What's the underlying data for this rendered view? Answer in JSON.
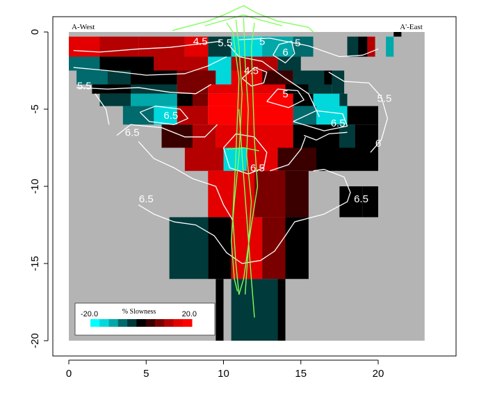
{
  "chart_data": {
    "type": "heatmap",
    "title": "",
    "xlabel": "",
    "ylabel": "",
    "xlim": [
      -1,
      25
    ],
    "ylim": [
      -21,
      1
    ],
    "x_ticks": [
      0,
      5,
      10,
      15,
      20
    ],
    "y_ticks": [
      0,
      -5,
      -10,
      -15,
      -20
    ],
    "corner_labels": {
      "left": "A-West",
      "right": "A'-East"
    },
    "legend": {
      "title": "% Slowness",
      "min_label": "-20.0",
      "max_label": "20.0",
      "min": -20,
      "max": 20
    },
    "colors": {
      "background": "#b4b4b4",
      "contour": "#ffffff",
      "outline": "#7fff5a",
      "ramp": [
        "#00ffff",
        "#00d8dc",
        "#00a8aa",
        "#006a6c",
        "#003a3a",
        "#000000",
        "#3a0000",
        "#7a0000",
        "#b40000",
        "#e40000",
        "#ff0000"
      ]
    },
    "cells": [
      {
        "x0": 0.0,
        "x1": 2.0,
        "y0": -0.3,
        "y1": -1.6,
        "v": 14
      },
      {
        "x0": 2.0,
        "x1": 4.5,
        "y0": -0.3,
        "y1": -1.6,
        "v": 10
      },
      {
        "x0": 4.5,
        "x1": 7.5,
        "y0": -0.3,
        "y1": -1.6,
        "v": 12
      },
      {
        "x0": 7.5,
        "x1": 9.0,
        "y0": -0.3,
        "y1": -1.6,
        "v": 16
      },
      {
        "x0": 9.0,
        "x1": 10.5,
        "y0": -0.3,
        "y1": -1.6,
        "v": -6
      },
      {
        "x0": 10.5,
        "x1": 12.5,
        "y0": -0.3,
        "y1": -1.6,
        "v": -18
      },
      {
        "x0": 12.5,
        "x1": 14.5,
        "y0": -0.3,
        "y1": -1.6,
        "v": -14
      },
      {
        "x0": 14.5,
        "x1": 15.8,
        "y0": -0.3,
        "y1": -1.6,
        "v": -8
      },
      {
        "x0": 18.0,
        "x1": 18.7,
        "y0": -0.3,
        "y1": -1.6,
        "v": -6
      },
      {
        "x0": 18.7,
        "x1": 19.3,
        "y0": -0.3,
        "y1": -1.6,
        "v": 0
      },
      {
        "x0": 19.3,
        "x1": 19.8,
        "y0": -0.3,
        "y1": -1.6,
        "v": 10
      },
      {
        "x0": 20.5,
        "x1": 21.0,
        "y0": -0.3,
        "y1": -1.6,
        "v": -14
      },
      {
        "x0": 21.0,
        "x1": 21.5,
        "y0": 0.0,
        "y1": -0.3,
        "v": 0
      },
      {
        "x0": 0.0,
        "x1": 2.0,
        "y0": -1.6,
        "y1": -2.5,
        "v": -10
      },
      {
        "x0": 2.0,
        "x1": 5.5,
        "y0": -1.6,
        "y1": -2.5,
        "v": 0
      },
      {
        "x0": 5.5,
        "x1": 9.0,
        "y0": -1.6,
        "y1": -2.5,
        "v": 10
      },
      {
        "x0": 9.0,
        "x1": 10.5,
        "y0": -1.6,
        "y1": -2.5,
        "v": -18
      },
      {
        "x0": 10.5,
        "x1": 13.5,
        "y0": -1.6,
        "y1": -2.5,
        "v": 10
      },
      {
        "x0": 13.5,
        "x1": 15.0,
        "y0": -1.6,
        "y1": -2.5,
        "v": -4
      },
      {
        "x0": 0.5,
        "x1": 2.5,
        "y0": -2.5,
        "y1": -3.4,
        "v": -10
      },
      {
        "x0": 2.5,
        "x1": 4.0,
        "y0": -2.5,
        "y1": -3.4,
        "v": -6
      },
      {
        "x0": 4.0,
        "x1": 7.0,
        "y0": -2.5,
        "y1": -3.4,
        "v": 0
      },
      {
        "x0": 7.0,
        "x1": 9.5,
        "y0": -2.5,
        "y1": -3.4,
        "v": 6
      },
      {
        "x0": 9.5,
        "x1": 10.5,
        "y0": -2.5,
        "y1": -3.4,
        "v": -16
      },
      {
        "x0": 10.5,
        "x1": 12.5,
        "y0": -2.5,
        "y1": -3.4,
        "v": 16
      },
      {
        "x0": 12.5,
        "x1": 14.5,
        "y0": -2.5,
        "y1": -3.4,
        "v": 4
      },
      {
        "x0": 14.5,
        "x1": 16.5,
        "y0": -2.5,
        "y1": -3.4,
        "v": -4
      },
      {
        "x0": 16.5,
        "x1": 17.8,
        "y0": -2.5,
        "y1": -3.4,
        "v": 0
      },
      {
        "x0": 17.0,
        "x1": 17.8,
        "y0": -2.5,
        "y1": -4.0,
        "v": -6
      },
      {
        "x0": 1.5,
        "x1": 4.0,
        "y0": -3.4,
        "y1": -4.0,
        "v": 0
      },
      {
        "x0": 4.0,
        "x1": 7.0,
        "y0": -3.4,
        "y1": -4.0,
        "v": -4
      },
      {
        "x0": 7.0,
        "x1": 9.0,
        "y0": -3.4,
        "y1": -4.0,
        "v": 6
      },
      {
        "x0": 9.0,
        "x1": 14.0,
        "y0": -3.4,
        "y1": -4.0,
        "v": 14
      },
      {
        "x0": 14.0,
        "x1": 15.5,
        "y0": -3.4,
        "y1": -4.0,
        "v": 0
      },
      {
        "x0": 15.5,
        "x1": 17.0,
        "y0": -3.4,
        "y1": -4.0,
        "v": -6
      },
      {
        "x0": 2.0,
        "x1": 4.0,
        "y0": -4.0,
        "y1": -4.8,
        "v": -6
      },
      {
        "x0": 4.0,
        "x1": 7.0,
        "y0": -4.0,
        "y1": -4.8,
        "v": -12
      },
      {
        "x0": 7.0,
        "x1": 8.0,
        "y0": -4.0,
        "y1": -4.8,
        "v": 0
      },
      {
        "x0": 8.0,
        "x1": 9.0,
        "y0": -4.0,
        "y1": -4.8,
        "v": 8
      },
      {
        "x0": 9.0,
        "x1": 14.5,
        "y0": -4.0,
        "y1": -4.8,
        "v": 18
      },
      {
        "x0": 14.5,
        "x1": 15.8,
        "y0": -4.0,
        "y1": -4.8,
        "v": 0
      },
      {
        "x0": 15.8,
        "x1": 17.5,
        "y0": -4.0,
        "y1": -4.8,
        "v": -18
      },
      {
        "x0": 17.5,
        "x1": 18.0,
        "y0": -4.0,
        "y1": -4.8,
        "v": -6
      },
      {
        "x0": 3.5,
        "x1": 5.5,
        "y0": -4.8,
        "y1": -6.0,
        "v": -8
      },
      {
        "x0": 5.5,
        "x1": 7.0,
        "y0": -4.8,
        "y1": -6.0,
        "v": -18
      },
      {
        "x0": 7.0,
        "x1": 9.0,
        "y0": -4.8,
        "y1": -6.0,
        "v": 10
      },
      {
        "x0": 9.0,
        "x1": 14.5,
        "y0": -4.8,
        "y1": -6.0,
        "v": 18
      },
      {
        "x0": 14.5,
        "x1": 16.0,
        "y0": -4.8,
        "y1": -6.0,
        "v": -8
      },
      {
        "x0": 16.0,
        "x1": 18.0,
        "y0": -4.8,
        "y1": -6.0,
        "v": -18
      },
      {
        "x0": 18.0,
        "x1": 20.0,
        "y0": -4.8,
        "y1": -6.0,
        "v": 0
      },
      {
        "x0": 6.0,
        "x1": 8.0,
        "y0": -6.0,
        "y1": -7.5,
        "v": 4
      },
      {
        "x0": 8.0,
        "x1": 9.5,
        "y0": -6.0,
        "y1": -7.5,
        "v": 12
      },
      {
        "x0": 9.5,
        "x1": 14.5,
        "y0": -6.0,
        "y1": -7.5,
        "v": 14
      },
      {
        "x0": 14.5,
        "x1": 16.0,
        "y0": -6.0,
        "y1": -7.5,
        "v": 0
      },
      {
        "x0": 16.0,
        "x1": 17.5,
        "y0": -6.0,
        "y1": -7.5,
        "v": -2
      },
      {
        "x0": 17.5,
        "x1": 18.5,
        "y0": -6.0,
        "y1": -7.5,
        "v": -4
      },
      {
        "x0": 18.5,
        "x1": 20.0,
        "y0": -6.0,
        "y1": -7.5,
        "v": -2
      },
      {
        "x0": 7.5,
        "x1": 10.0,
        "y0": -7.5,
        "y1": -9.0,
        "v": 12
      },
      {
        "x0": 10.0,
        "x1": 11.5,
        "y0": -7.5,
        "y1": -9.0,
        "v": -16
      },
      {
        "x0": 11.5,
        "x1": 13.5,
        "y0": -7.5,
        "y1": -9.0,
        "v": 14
      },
      {
        "x0": 13.5,
        "x1": 16.0,
        "y0": -7.5,
        "y1": -9.0,
        "v": 4
      },
      {
        "x0": 16.0,
        "x1": 20.0,
        "y0": -7.5,
        "y1": -9.0,
        "v": -2
      },
      {
        "x0": 9.0,
        "x1": 12.0,
        "y0": -9.0,
        "y1": -12.0,
        "v": 14
      },
      {
        "x0": 12.0,
        "x1": 14.0,
        "y0": -9.0,
        "y1": -12.0,
        "v": 8
      },
      {
        "x0": 14.0,
        "x1": 15.5,
        "y0": -9.0,
        "y1": -12.0,
        "v": 2
      },
      {
        "x0": 17.5,
        "x1": 19.0,
        "y0": -10.0,
        "y1": -12.0,
        "v": -2
      },
      {
        "x0": 19.0,
        "x1": 20.0,
        "y0": -10.0,
        "y1": -12.0,
        "v": 0
      },
      {
        "x0": 6.5,
        "x1": 9.0,
        "y0": -12.0,
        "y1": -16.0,
        "v": -4
      },
      {
        "x0": 9.0,
        "x1": 10.5,
        "y0": -12.0,
        "y1": -16.0,
        "v": 0
      },
      {
        "x0": 10.5,
        "x1": 12.5,
        "y0": -12.0,
        "y1": -16.0,
        "v": 14
      },
      {
        "x0": 12.5,
        "x1": 14.0,
        "y0": -12.0,
        "y1": -16.0,
        "v": 6
      },
      {
        "x0": 14.0,
        "x1": 15.5,
        "y0": -12.0,
        "y1": -16.0,
        "v": -2
      },
      {
        "x0": 9.5,
        "x1": 10.0,
        "y0": -16.0,
        "y1": -20.0,
        "v": 0
      },
      {
        "x0": 10.5,
        "x1": 12.0,
        "y0": -16.0,
        "y1": -20.0,
        "v": -6
      },
      {
        "x0": 12.0,
        "x1": 13.5,
        "y0": -16.0,
        "y1": -20.0,
        "v": -4
      },
      {
        "x0": 13.5,
        "x1": 14.0,
        "y0": -16.0,
        "y1": -20.0,
        "v": 0
      }
    ],
    "contour_labels": [
      {
        "text": "4.5",
        "x": 8.5,
        "y": -0.6
      },
      {
        "text": "5.5",
        "x": 10.1,
        "y": -0.7
      },
      {
        "text": "5",
        "x": 12.5,
        "y": -0.6
      },
      {
        "text": "5",
        "x": 14.8,
        "y": -0.7
      },
      {
        "text": "6",
        "x": 14.0,
        "y": -1.3
      },
      {
        "text": "4.5",
        "x": 11.8,
        "y": -2.5
      },
      {
        "text": "5.5",
        "x": 1.0,
        "y": -3.5
      },
      {
        "text": "5",
        "x": 14.0,
        "y": -4.0
      },
      {
        "text": "5.5",
        "x": 20.4,
        "y": -4.3
      },
      {
        "text": "6.5",
        "x": 6.6,
        "y": -5.4
      },
      {
        "text": "6.5",
        "x": 4.1,
        "y": -6.5
      },
      {
        "text": "6.5",
        "x": 17.4,
        "y": -5.9
      },
      {
        "text": "6",
        "x": 20.0,
        "y": -7.2
      },
      {
        "text": "6.5",
        "x": 12.2,
        "y": -8.8
      },
      {
        "text": "6.5",
        "x": 5.0,
        "y": -10.8
      },
      {
        "text": "6.5",
        "x": 18.9,
        "y": -10.8
      }
    ],
    "contours": [
      [
        [
          0.3,
          -1.2
        ],
        [
          2.0,
          -1.3
        ],
        [
          4.5,
          -1.1
        ],
        [
          6.5,
          -1.0
        ],
        [
          8.2,
          -0.8
        ],
        [
          9.8,
          -0.6
        ]
      ],
      [
        [
          11.0,
          -0.5
        ],
        [
          13.0,
          -0.4
        ],
        [
          15.5,
          -0.9
        ],
        [
          17.5,
          -1.6
        ],
        [
          19.0,
          -1.5
        ],
        [
          20.0,
          -1.1
        ]
      ],
      [
        [
          0.3,
          -2.3
        ],
        [
          2.5,
          -2.5
        ],
        [
          5.0,
          -2.8
        ],
        [
          7.5,
          -2.7
        ],
        [
          9.0,
          -2.2
        ],
        [
          10.2,
          -1.6
        ]
      ],
      [
        [
          0.5,
          -3.6
        ],
        [
          2.5,
          -3.7
        ],
        [
          4.5,
          -3.6
        ],
        [
          6.5,
          -3.9
        ],
        [
          8.2,
          -4.0
        ],
        [
          9.2,
          -3.4
        ]
      ],
      [
        [
          1.7,
          -4.0
        ],
        [
          2.4,
          -5.0
        ],
        [
          2.6,
          -6.0
        ]
      ],
      [
        [
          4.6,
          -5.2
        ],
        [
          5.6,
          -4.8
        ],
        [
          7.2,
          -5.0
        ],
        [
          7.7,
          -5.6
        ],
        [
          6.8,
          -6.0
        ],
        [
          5.2,
          -5.8
        ],
        [
          4.6,
          -5.2
        ]
      ],
      [
        [
          3.1,
          -6.7
        ],
        [
          4.0,
          -6.0
        ],
        [
          6.0,
          -6.2
        ],
        [
          7.5,
          -6.8
        ],
        [
          8.8,
          -6.8
        ],
        [
          9.6,
          -6.0
        ]
      ],
      [
        [
          4.5,
          -7.1
        ],
        [
          5.5,
          -8.2
        ],
        [
          6.8,
          -8.8
        ],
        [
          8.0,
          -9.5
        ],
        [
          9.5,
          -10.0
        ]
      ],
      [
        [
          11.2,
          -3.0
        ],
        [
          12.0,
          -2.3
        ],
        [
          12.8,
          -2.6
        ],
        [
          12.6,
          -3.3
        ],
        [
          11.8,
          -3.5
        ],
        [
          11.2,
          -3.0
        ]
      ],
      [
        [
          13.2,
          -1.5
        ],
        [
          13.6,
          -0.8
        ],
        [
          14.4,
          -0.6
        ],
        [
          14.6,
          -1.4
        ],
        [
          14.0,
          -2.0
        ],
        [
          13.2,
          -1.5
        ]
      ],
      [
        [
          12.8,
          -4.5
        ],
        [
          13.5,
          -3.7
        ],
        [
          14.8,
          -3.8
        ],
        [
          15.2,
          -4.4
        ],
        [
          14.2,
          -4.9
        ],
        [
          12.8,
          -4.5
        ]
      ],
      [
        [
          10.3,
          -0.8
        ],
        [
          11.0,
          -1.6
        ],
        [
          12.5,
          -1.9
        ],
        [
          14.0,
          -3.0
        ],
        [
          15.5,
          -4.0
        ],
        [
          16.2,
          -5.5
        ]
      ],
      [
        [
          14.5,
          -5.8
        ],
        [
          16.0,
          -5.1
        ],
        [
          17.7,
          -5.3
        ],
        [
          18.0,
          -6.1
        ],
        [
          16.5,
          -6.4
        ],
        [
          14.5,
          -5.8
        ]
      ],
      [
        [
          16.8,
          -2.6
        ],
        [
          17.8,
          -3.2
        ],
        [
          19.4,
          -3.3
        ],
        [
          20.2,
          -4.2
        ],
        [
          20.6,
          -5.6
        ],
        [
          20.2,
          -7.0
        ],
        [
          19.5,
          -7.8
        ]
      ],
      [
        [
          15.2,
          -6.7
        ],
        [
          16.0,
          -7.0
        ],
        [
          16.8,
          -6.6
        ],
        [
          18.0,
          -6.5
        ]
      ],
      [
        [
          13.0,
          -9.0
        ],
        [
          14.2,
          -8.6
        ],
        [
          15.0,
          -7.6
        ],
        [
          15.3,
          -6.8
        ]
      ],
      [
        [
          10.0,
          -7.5
        ],
        [
          10.8,
          -6.6
        ],
        [
          12.0,
          -6.8
        ],
        [
          12.8,
          -7.8
        ],
        [
          12.6,
          -8.8
        ],
        [
          11.6,
          -9.2
        ],
        [
          10.4,
          -8.8
        ],
        [
          10.0,
          -7.5
        ]
      ],
      [
        [
          4.5,
          -11.2
        ],
        [
          5.5,
          -11.8
        ],
        [
          6.8,
          -12.3
        ],
        [
          8.2,
          -12.5
        ],
        [
          9.4,
          -13.2
        ],
        [
          10.2,
          -14.3
        ],
        [
          11.2,
          -15.0
        ],
        [
          12.4,
          -14.8
        ],
        [
          13.3,
          -14.2
        ],
        [
          14.0,
          -13.2
        ],
        [
          14.6,
          -12.3
        ],
        [
          16.5,
          -11.8
        ],
        [
          18.0,
          -11.0
        ],
        [
          18.2,
          -10.4
        ],
        [
          17.8,
          -9.4
        ],
        [
          16.5,
          -8.9
        ],
        [
          15.8,
          -9.0
        ]
      ],
      [
        [
          9.5,
          -10.0
        ],
        [
          10.0,
          -11.2
        ],
        [
          10.6,
          -12.2
        ]
      ]
    ],
    "outline_paths": [
      [
        [
          6.7,
          0.1
        ],
        [
          9.0,
          0.7
        ],
        [
          10.0,
          1.1
        ],
        [
          11.3,
          1.7
        ],
        [
          12.2,
          1.2
        ],
        [
          13.5,
          0.7
        ],
        [
          15.5,
          0.3
        ],
        [
          15.8,
          0.0
        ]
      ],
      [
        [
          8.8,
          0.4
        ],
        [
          10.2,
          0.8
        ],
        [
          11.3,
          1.1
        ],
        [
          12.3,
          0.8
        ],
        [
          13.8,
          0.4
        ]
      ],
      [
        [
          10.2,
          0.6
        ],
        [
          10.6,
          0.0
        ],
        [
          11.0,
          -3.0
        ],
        [
          10.8,
          -8.0
        ],
        [
          10.6,
          -12.0
        ],
        [
          10.8,
          -15.0
        ],
        [
          11.0,
          -17.0
        ],
        [
          11.3,
          -16.0
        ],
        [
          11.8,
          -12.5
        ],
        [
          12.2,
          -10.0
        ],
        [
          12.0,
          -7.0
        ],
        [
          11.9,
          -4.0
        ],
        [
          11.8,
          -1.0
        ],
        [
          12.0,
          0.6
        ]
      ],
      [
        [
          10.8,
          0.8
        ],
        [
          11.0,
          -1.0
        ],
        [
          11.2,
          -4.0
        ],
        [
          11.0,
          -8.0
        ],
        [
          10.7,
          -11.0
        ],
        [
          10.5,
          -13.5
        ],
        [
          10.7,
          -16.0
        ],
        [
          10.9,
          -16.8
        ]
      ],
      [
        [
          11.3,
          0.9
        ],
        [
          11.4,
          -2.0
        ],
        [
          11.6,
          -5.0
        ],
        [
          11.5,
          -8.0
        ],
        [
          11.8,
          -11.0
        ],
        [
          11.6,
          -14.0
        ],
        [
          11.4,
          -17.0
        ]
      ],
      [
        [
          11.0,
          -5.0
        ],
        [
          11.2,
          -8.0
        ],
        [
          11.5,
          -12.0
        ],
        [
          11.8,
          -16.0
        ],
        [
          12.0,
          -18.5
        ]
      ],
      [
        [
          10.2,
          -7.6
        ],
        [
          11.3,
          -7.5
        ],
        [
          12.3,
          -7.7
        ]
      ]
    ]
  }
}
